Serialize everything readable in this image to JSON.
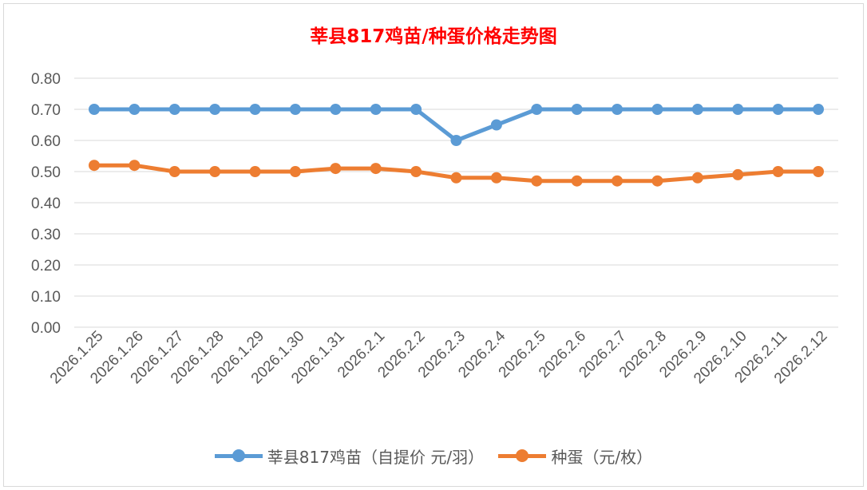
{
  "chart_data": {
    "type": "line",
    "title": "莘县817鸡苗/种蛋价格走势图",
    "categories": [
      "2026.1.25",
      "2026.1.26",
      "2026.1.27",
      "2026.1.28",
      "2026.1.29",
      "2026.1.30",
      "2026.1.31",
      "2026.2.1",
      "2026.2.2",
      "2026.2.3",
      "2026.2.4",
      "2026.2.5",
      "2026.2.6",
      "2026.2.7",
      "2026.2.8",
      "2026.2.9",
      "2026.2.10",
      "2026.2.11",
      "2026.2.12"
    ],
    "ylim": [
      0,
      0.8
    ],
    "yticks": [
      "0.00",
      "0.10",
      "0.20",
      "0.30",
      "0.40",
      "0.50",
      "0.60",
      "0.70",
      "0.80"
    ],
    "grid": true,
    "legend": "bottom",
    "series": [
      {
        "name": "莘县817鸡苗（自提价 元/羽）",
        "color": "#5b9bd5",
        "values": [
          0.7,
          0.7,
          0.7,
          0.7,
          0.7,
          0.7,
          0.7,
          0.7,
          0.7,
          0.6,
          0.65,
          0.7,
          0.7,
          0.7,
          0.7,
          0.7,
          0.7,
          0.7,
          0.7
        ]
      },
      {
        "name": "种蛋（元/枚）",
        "color": "#ed7d31",
        "values": [
          0.52,
          0.52,
          0.5,
          0.5,
          0.5,
          0.5,
          0.51,
          0.51,
          0.5,
          0.48,
          0.48,
          0.47,
          0.47,
          0.47,
          0.47,
          0.48,
          0.49,
          0.5,
          0.5
        ]
      }
    ]
  }
}
